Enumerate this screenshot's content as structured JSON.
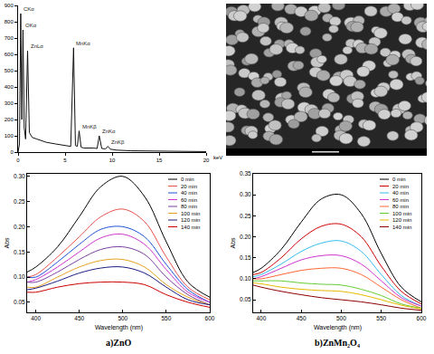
{
  "chart_data": [
    {
      "type": "line",
      "x_label": "keV",
      "x": [
        0,
        0.15,
        0.28,
        0.4,
        0.52,
        0.65,
        0.8,
        1.01,
        1.2,
        1.5,
        2,
        3,
        4,
        5,
        5.6,
        5.9,
        6.1,
        6.3,
        6.49,
        6.7,
        7,
        8,
        8.4,
        8.63,
        8.9,
        9.3,
        9.57,
        9.8,
        10.5,
        12,
        15,
        20
      ],
      "series": [
        {
          "color": "#111111",
          "values": [
            0,
            50,
            850,
            200,
            750,
            150,
            80,
            620,
            120,
            90,
            80,
            60,
            50,
            40,
            35,
            640,
            40,
            35,
            130,
            30,
            25,
            25,
            22,
            100,
            22,
            20,
            35,
            18,
            12,
            8,
            5,
            3
          ]
        }
      ],
      "xlim": [
        0,
        20
      ],
      "xticks": [
        0,
        5,
        10,
        15,
        20
      ],
      "ylim": [
        0,
        900
      ],
      "yticks": [
        0,
        100,
        200,
        300,
        400,
        500,
        600,
        700,
        800,
        900
      ],
      "grid": false,
      "annotations": [
        {
          "text": "CKα",
          "x": 0.28,
          "y": 850
        },
        {
          "text": "OKα",
          "x": 0.52,
          "y": 750
        },
        {
          "text": "ZnLα",
          "x": 1.01,
          "y": 620
        },
        {
          "text": "MnKα",
          "x": 5.9,
          "y": 640
        },
        {
          "text": "MnKβ",
          "x": 6.49,
          "y": 130
        },
        {
          "text": "ZnKα",
          "x": 8.63,
          "y": 100
        },
        {
          "text": "ZnKβ",
          "x": 9.57,
          "y": 35
        }
      ]
    },
    {
      "type": "line",
      "title": "a)ZnO",
      "x_label": "Wavelength (nm)",
      "y_label": "Abs",
      "x": [
        390,
        400,
        425,
        450,
        475,
        500,
        525,
        550,
        575,
        600
      ],
      "series": [
        {
          "name": "0 min",
          "color": "#000000",
          "values": [
            0.11,
            0.12,
            0.16,
            0.22,
            0.28,
            0.3,
            0.26,
            0.17,
            0.09,
            0.06
          ]
        },
        {
          "name": "20 min",
          "color": "#e8504a",
          "values": [
            0.1,
            0.105,
            0.14,
            0.18,
            0.22,
            0.235,
            0.21,
            0.14,
            0.08,
            0.055
          ]
        },
        {
          "name": "40 min",
          "color": "#1f4fd6",
          "values": [
            0.1,
            0.1,
            0.13,
            0.165,
            0.195,
            0.2,
            0.18,
            0.125,
            0.075,
            0.05
          ]
        },
        {
          "name": "60 min",
          "color": "#cc33cc",
          "values": [
            0.09,
            0.095,
            0.12,
            0.15,
            0.178,
            0.185,
            0.165,
            0.115,
            0.07,
            0.05
          ]
        },
        {
          "name": "80 min",
          "color": "#7a3fa0",
          "values": [
            0.09,
            0.09,
            0.11,
            0.135,
            0.155,
            0.16,
            0.145,
            0.1,
            0.065,
            0.045
          ]
        },
        {
          "name": "100 min",
          "color": "#e6a020",
          "values": [
            0.08,
            0.08,
            0.1,
            0.12,
            0.133,
            0.135,
            0.12,
            0.085,
            0.06,
            0.045
          ]
        },
        {
          "name": "120 min",
          "color": "#1a1a80",
          "values": [
            0.075,
            0.078,
            0.092,
            0.108,
            0.118,
            0.12,
            0.108,
            0.08,
            0.055,
            0.045
          ]
        },
        {
          "name": "140 min",
          "color": "#cc0000",
          "values": [
            0.07,
            0.07,
            0.08,
            0.087,
            0.09,
            0.09,
            0.085,
            0.065,
            0.05,
            0.04
          ]
        }
      ],
      "xlim": [
        390,
        600
      ],
      "xticks": [
        400,
        450,
        500,
        550,
        600
      ],
      "ylim": [
        0.03,
        0.305
      ],
      "yticks": [
        0.05,
        {
          "value": 0.1,
          "label": "0.10"
        },
        0.15,
        {
          "value": 0.2,
          "label": "0.20"
        },
        0.25,
        {
          "value": 0.3,
          "label": "0.30"
        }
      ],
      "grid": false,
      "legend": "upper right"
    },
    {
      "type": "line",
      "title": "b)ZnMn₂O₄",
      "x_label": "Wavelength (nm)",
      "y_label": "Abs",
      "x": [
        390,
        400,
        425,
        450,
        475,
        500,
        525,
        550,
        575,
        600
      ],
      "series": [
        {
          "name": "0 min",
          "color": "#000000",
          "values": [
            0.115,
            0.125,
            0.17,
            0.235,
            0.29,
            0.3,
            0.255,
            0.16,
            0.08,
            0.045
          ]
        },
        {
          "name": "20 min",
          "color": "#cc0000",
          "values": [
            0.11,
            0.115,
            0.15,
            0.195,
            0.225,
            0.23,
            0.2,
            0.13,
            0.07,
            0.04
          ]
        },
        {
          "name": "40 min",
          "color": "#33bbee",
          "values": [
            0.105,
            0.11,
            0.135,
            0.165,
            0.185,
            0.19,
            0.165,
            0.11,
            0.06,
            0.035
          ]
        },
        {
          "name": "60 min",
          "color": "#cc33cc",
          "values": [
            0.1,
            0.105,
            0.125,
            0.145,
            0.155,
            0.155,
            0.135,
            0.095,
            0.055,
            0.035
          ]
        },
        {
          "name": "80 min",
          "color": "#ff6633",
          "values": [
            0.1,
            0.1,
            0.11,
            0.12,
            0.125,
            0.125,
            0.11,
            0.08,
            0.05,
            0.03
          ]
        },
        {
          "name": "100 min",
          "color": "#66cc33",
          "values": [
            0.095,
            0.095,
            0.095,
            0.09,
            0.087,
            0.085,
            0.075,
            0.06,
            0.04,
            0.03
          ]
        },
        {
          "name": "120 min",
          "color": "#e6b800",
          "values": [
            0.09,
            0.088,
            0.08,
            0.075,
            0.072,
            0.07,
            0.062,
            0.05,
            0.037,
            0.028
          ]
        },
        {
          "name": "140 min",
          "color": "#8b0000",
          "values": [
            0.085,
            0.08,
            0.07,
            0.062,
            0.055,
            0.05,
            0.045,
            0.038,
            0.03,
            0.025
          ]
        }
      ],
      "xlim": [
        390,
        600
      ],
      "xticks": [
        400,
        450,
        500,
        550,
        600
      ],
      "ylim": [
        0.02,
        0.35
      ],
      "yticks": [
        0.05,
        {
          "value": 0.1,
          "label": "0.10"
        },
        0.15,
        {
          "value": 0.2,
          "label": "0.20"
        },
        0.25,
        {
          "value": 0.3,
          "label": "0.30"
        },
        0.35
      ],
      "grid": false,
      "legend": "upper right"
    }
  ]
}
